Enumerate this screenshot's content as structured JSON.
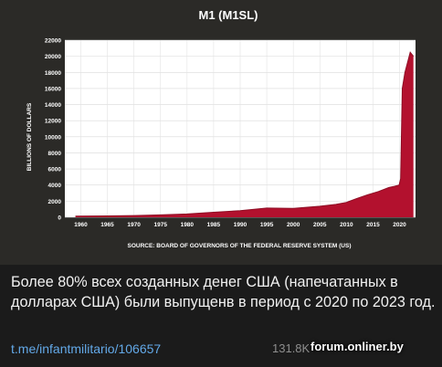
{
  "post": {
    "message": "Более 80% всех созданных денег США (напечатанных в долларах США) были выпущенв в период с 2020 по 2023 год.",
    "link": "t.me/infantmilitario/106657",
    "views": "131.8K",
    "watermark": "forum.onliner.by"
  },
  "colors": {
    "series": "#b3112e",
    "plot_bg": "#ffffff",
    "panel_bg": "#2b2a27"
  },
  "chart_data": {
    "type": "area",
    "title": "M1 (M1SL)",
    "ylabel": "BILLIONS OF DOLLARS",
    "xlabel": "",
    "source": "SOURCE: BOARD OF GOVERNORS OF THE FEDERAL RESERVE SYSTEM (US)",
    "xlim": [
      1957,
      2023
    ],
    "ylim": [
      0,
      22000
    ],
    "x_ticks": [
      1960,
      1965,
      1970,
      1975,
      1980,
      1985,
      1990,
      1995,
      2000,
      2005,
      2010,
      2015,
      2020
    ],
    "y_ticks": [
      0,
      2000,
      4000,
      6000,
      8000,
      10000,
      12000,
      14000,
      16000,
      18000,
      20000,
      22000
    ],
    "grid": true,
    "x": [
      1959,
      1965,
      1970,
      1975,
      1980,
      1985,
      1990,
      1995,
      2000,
      2005,
      2008,
      2010,
      2012,
      2014,
      2016,
      2018,
      2019,
      2019.9,
      2020.2,
      2020.5,
      2021,
      2022,
      2022.6
    ],
    "values": [
      140,
      165,
      215,
      290,
      410,
      620,
      830,
      1150,
      1100,
      1370,
      1600,
      1850,
      2350,
      2800,
      3200,
      3700,
      3850,
      4000,
      4800,
      16000,
      18000,
      20500,
      20000
    ]
  }
}
